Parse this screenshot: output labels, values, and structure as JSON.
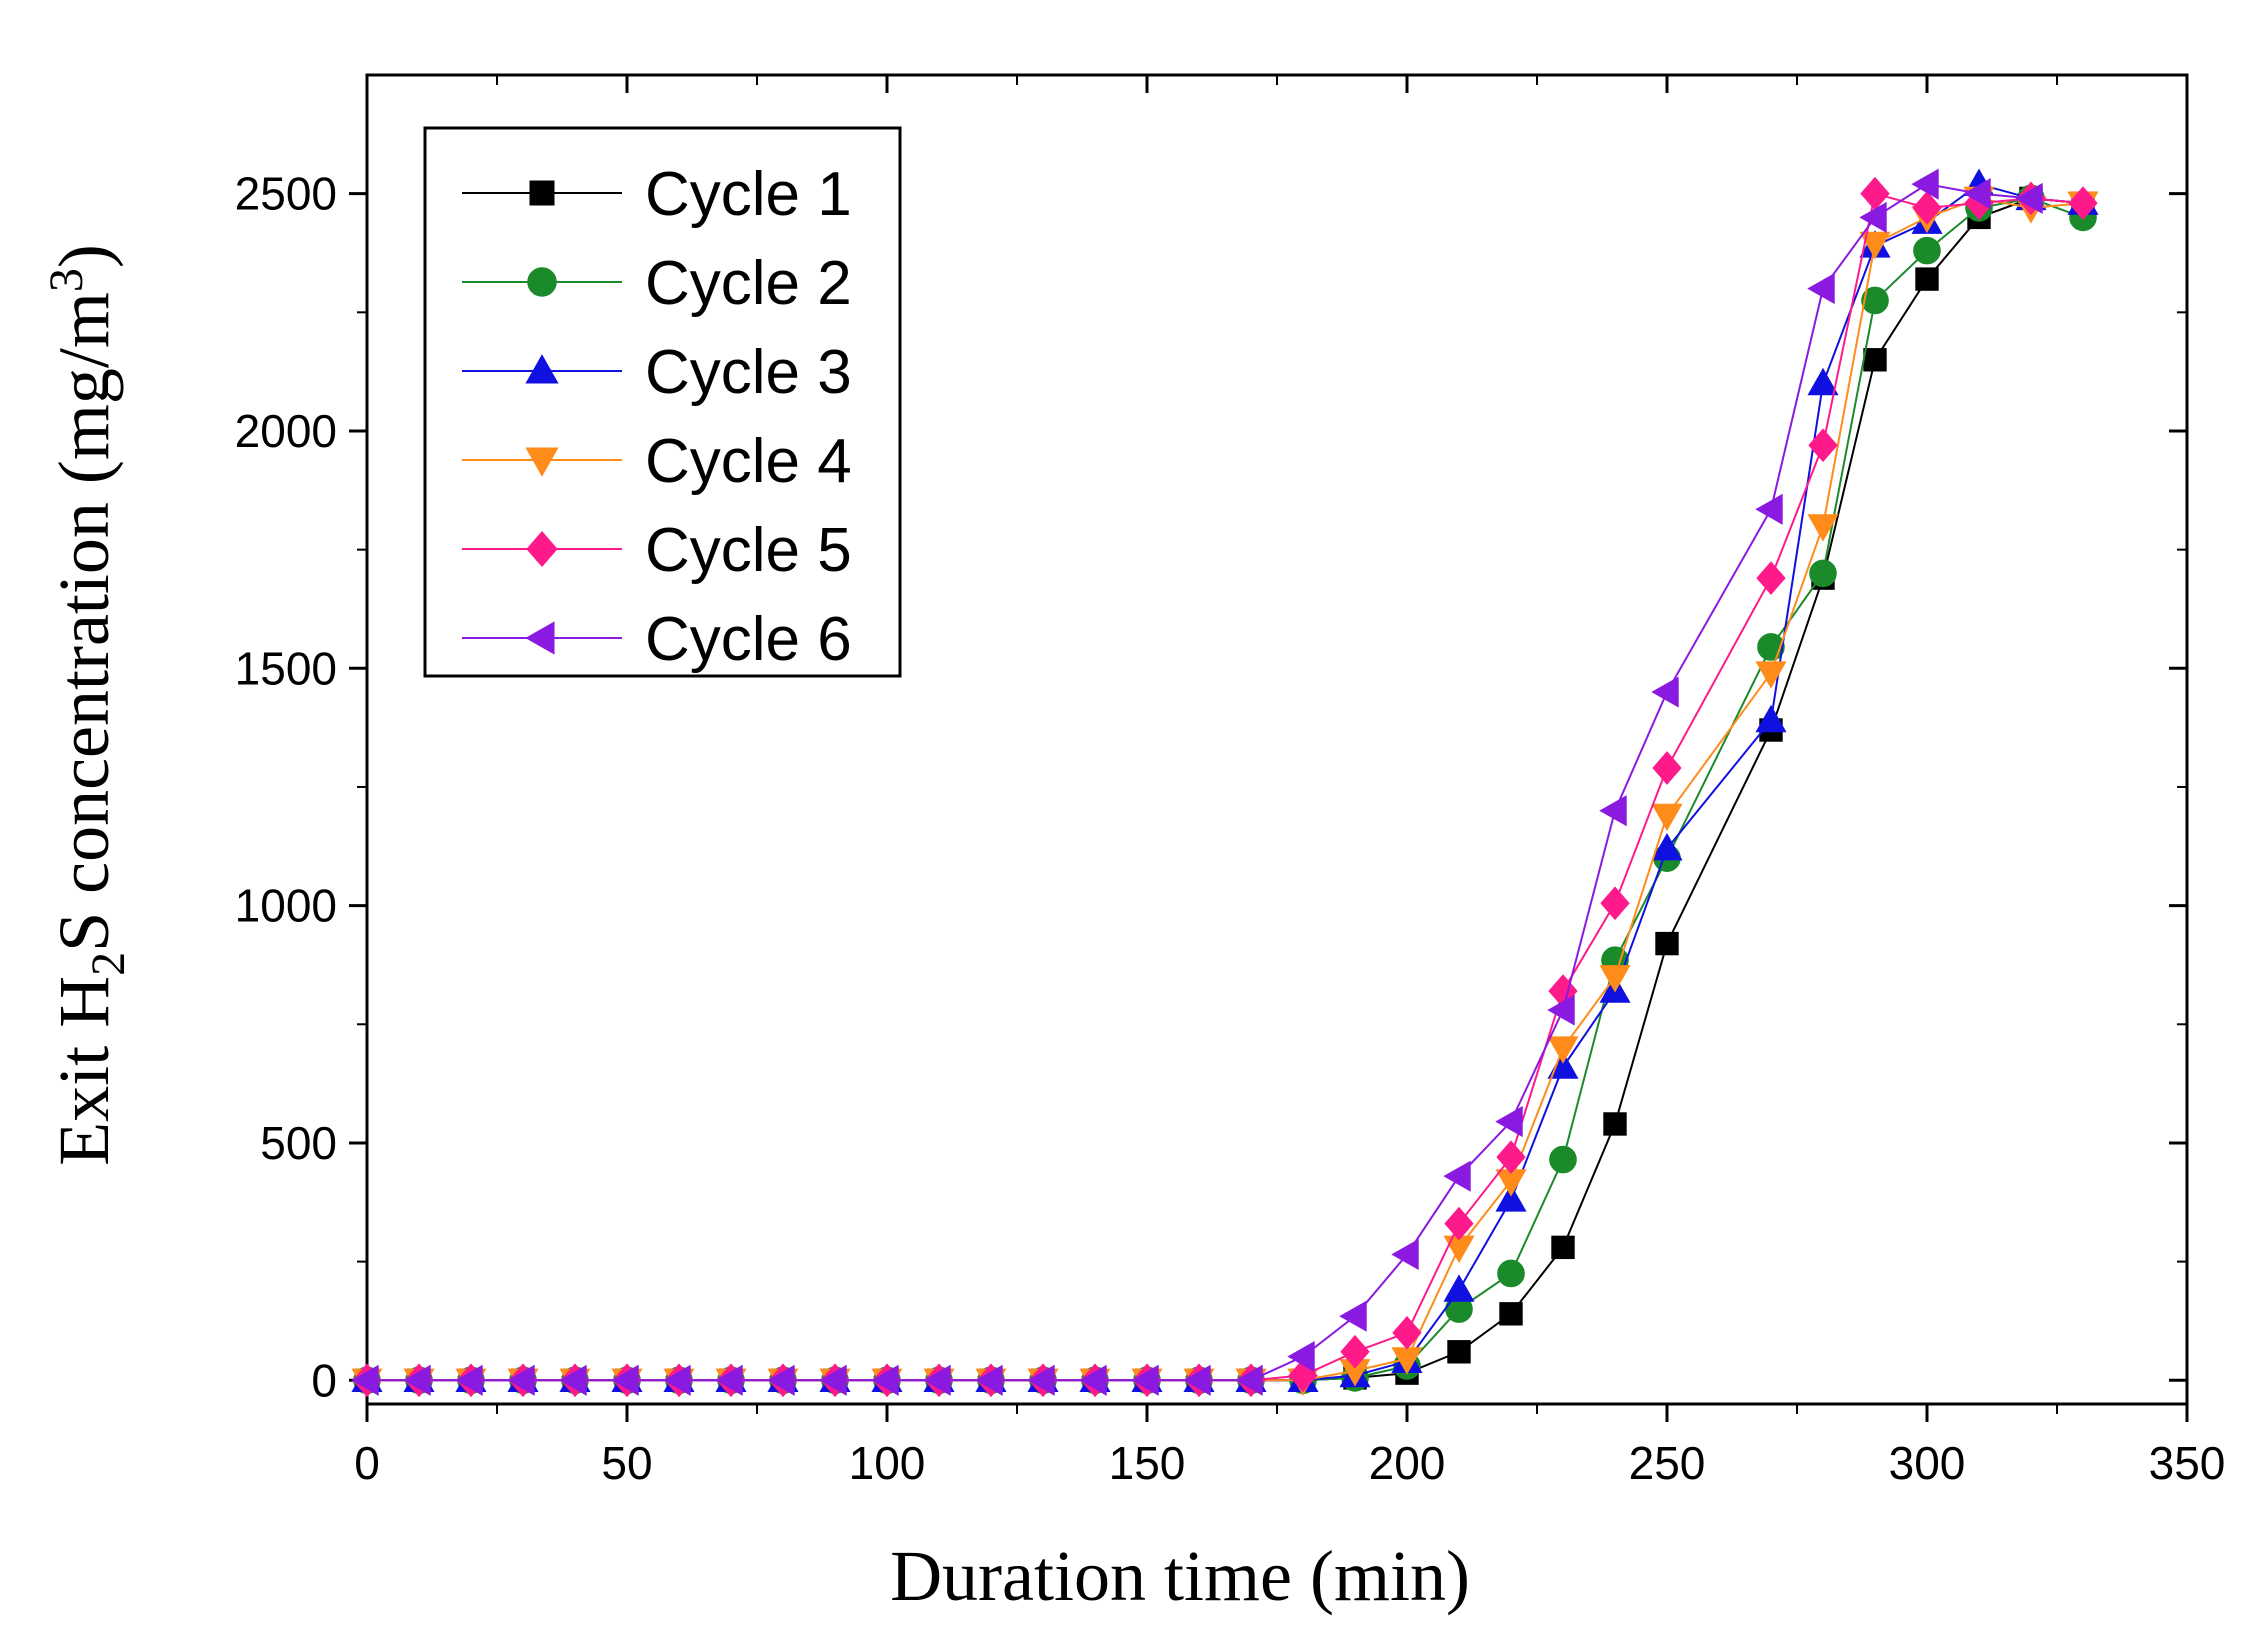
{
  "chart_data": {
    "type": "line",
    "title": "",
    "xlabel": "Duration time (min)",
    "ylabel": {
      "prefix": "Exit H",
      "sub": "2",
      "middle": "S concentration (mg/m",
      "sup": "3",
      "suffix": ")"
    },
    "xlim": [
      0,
      350
    ],
    "ylim": [
      -50,
      2750
    ],
    "xticks": [
      0,
      50,
      100,
      150,
      200,
      250,
      300,
      350
    ],
    "xtick_labels": [
      "0",
      "50",
      "100",
      "150",
      "200",
      "250",
      "300",
      "350"
    ],
    "yticks": [
      0,
      500,
      1000,
      1500,
      2000,
      2500
    ],
    "ytick_labels": [
      "0",
      "500",
      "1000",
      "1500",
      "2000",
      "2500"
    ],
    "grid": false,
    "legend_position": "top-left",
    "series": [
      {
        "name": "Cycle 1",
        "color": "#000000",
        "marker": "square",
        "x": [
          0,
          10,
          20,
          30,
          40,
          50,
          60,
          70,
          80,
          90,
          100,
          110,
          120,
          130,
          140,
          150,
          160,
          170,
          180,
          190,
          200,
          210,
          220,
          230,
          240,
          250,
          270,
          280,
          290,
          300,
          310,
          320,
          330
        ],
        "y": [
          0,
          0,
          0,
          0,
          0,
          0,
          0,
          0,
          0,
          0,
          0,
          0,
          0,
          0,
          0,
          0,
          0,
          0,
          0,
          5,
          15,
          60,
          140,
          280,
          540,
          920,
          1370,
          1690,
          2150,
          2320,
          2450,
          2490,
          2480
        ]
      },
      {
        "name": "Cycle 2",
        "color": "#1a8a2a",
        "marker": "circle",
        "x": [
          0,
          10,
          20,
          30,
          40,
          50,
          60,
          70,
          80,
          90,
          100,
          110,
          120,
          130,
          140,
          150,
          160,
          170,
          180,
          190,
          200,
          210,
          220,
          230,
          240,
          250,
          270,
          280,
          290,
          300,
          310,
          320,
          330
        ],
        "y": [
          0,
          0,
          0,
          0,
          0,
          0,
          0,
          0,
          0,
          0,
          0,
          0,
          0,
          0,
          0,
          0,
          0,
          0,
          0,
          5,
          30,
          150,
          225,
          465,
          885,
          1100,
          1545,
          1700,
          2275,
          2380,
          2470,
          2490,
          2450
        ]
      },
      {
        "name": "Cycle 3",
        "color": "#1010e0",
        "marker": "triangle-up",
        "x": [
          0,
          10,
          20,
          30,
          40,
          50,
          60,
          70,
          80,
          90,
          100,
          110,
          120,
          130,
          140,
          150,
          160,
          170,
          180,
          190,
          200,
          210,
          220,
          230,
          240,
          250,
          270,
          280,
          290,
          300,
          310,
          320,
          330
        ],
        "y": [
          0,
          0,
          0,
          0,
          0,
          0,
          0,
          0,
          0,
          0,
          0,
          0,
          0,
          0,
          0,
          0,
          0,
          0,
          0,
          10,
          40,
          190,
          380,
          660,
          820,
          1120,
          1390,
          2100,
          2390,
          2440,
          2520,
          2490,
          2480
        ]
      },
      {
        "name": "Cycle 4",
        "color": "#ff8c1a",
        "marker": "triangle-down",
        "x": [
          0,
          10,
          20,
          30,
          40,
          50,
          60,
          70,
          80,
          90,
          100,
          110,
          120,
          130,
          140,
          150,
          160,
          170,
          180,
          190,
          200,
          210,
          220,
          230,
          240,
          250,
          270,
          280,
          290,
          300,
          310,
          320,
          330
        ],
        "y": [
          0,
          0,
          0,
          0,
          0,
          0,
          0,
          0,
          0,
          0,
          0,
          0,
          0,
          0,
          0,
          0,
          0,
          0,
          0,
          20,
          45,
          280,
          420,
          700,
          850,
          1190,
          1490,
          1800,
          2395,
          2450,
          2490,
          2470,
          2480
        ]
      },
      {
        "name": "Cycle 5",
        "color": "#ff1a8c",
        "marker": "diamond",
        "x": [
          0,
          10,
          20,
          30,
          40,
          50,
          60,
          70,
          80,
          90,
          100,
          110,
          120,
          130,
          140,
          150,
          160,
          170,
          180,
          190,
          200,
          210,
          220,
          230,
          240,
          250,
          270,
          280,
          290,
          300,
          310,
          320,
          330
        ],
        "y": [
          0,
          0,
          0,
          0,
          0,
          0,
          0,
          0,
          0,
          0,
          0,
          0,
          0,
          0,
          0,
          0,
          0,
          0,
          10,
          60,
          100,
          330,
          470,
          820,
          1005,
          1290,
          1690,
          1970,
          2500,
          2470,
          2480,
          2490,
          2480
        ]
      },
      {
        "name": "Cycle 6",
        "color": "#8a1ae0",
        "marker": "triangle-left",
        "x": [
          0,
          10,
          20,
          30,
          40,
          50,
          60,
          70,
          80,
          90,
          100,
          110,
          120,
          130,
          140,
          150,
          160,
          170,
          180,
          190,
          200,
          210,
          220,
          230,
          240,
          250,
          270,
          280,
          290,
          300,
          310,
          320
        ],
        "y": [
          0,
          0,
          0,
          0,
          0,
          0,
          0,
          0,
          0,
          0,
          0,
          0,
          0,
          0,
          0,
          0,
          0,
          0,
          50,
          135,
          265,
          430,
          545,
          780,
          1200,
          1450,
          1835,
          2300,
          2450,
          2520,
          2500,
          2490
        ]
      }
    ]
  }
}
